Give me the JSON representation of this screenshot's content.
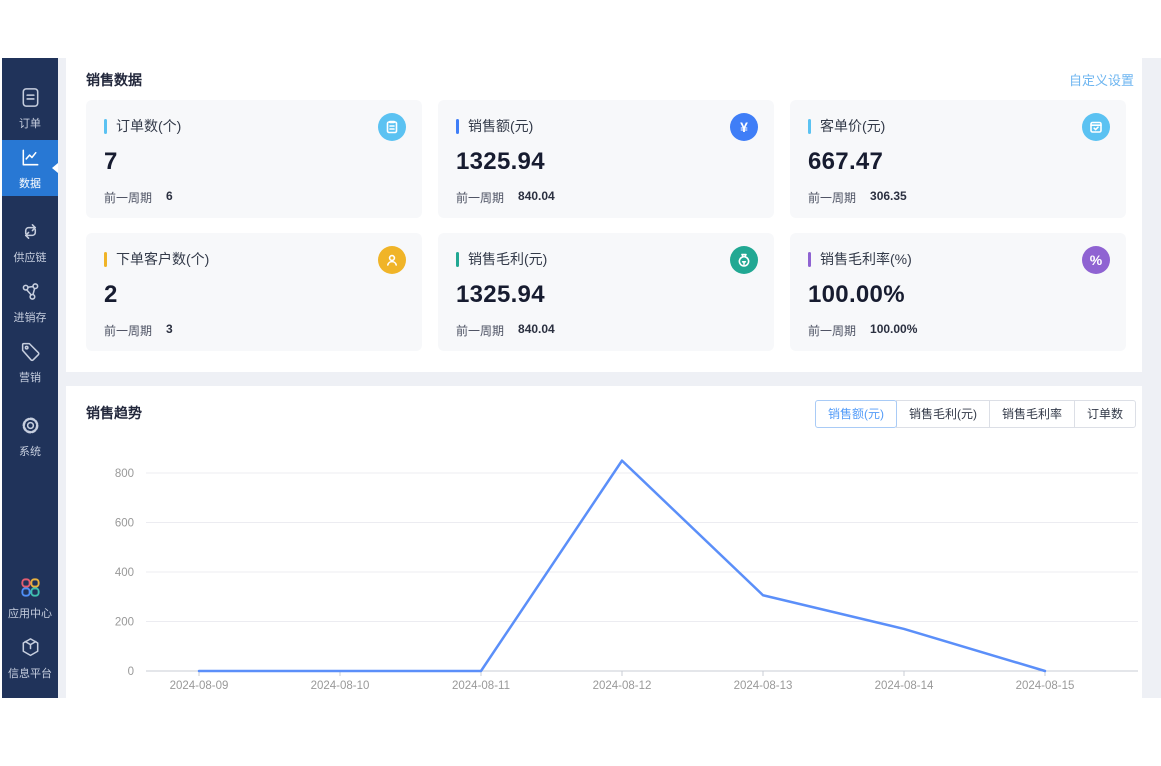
{
  "colors": {
    "sidebar_bg": "#20335a",
    "sidebar_active_bg": "#2878d4",
    "app_bg": "#eef0f5",
    "card_bg": "#f7f8fa",
    "line": "#5b8ff9",
    "link": "#6db5f0",
    "accents": [
      "#5bc2f2",
      "#3f7ef7",
      "#5bc2f2",
      "#f0b428",
      "#21a893",
      "#8f63d2"
    ]
  },
  "sidebar": {
    "items": [
      {
        "label": "订单",
        "icon": "document-icon",
        "active": false
      },
      {
        "label": "数据",
        "icon": "chart-line-icon",
        "active": true
      },
      {
        "label": "供应链",
        "icon": "supply-chain-icon",
        "active": false
      },
      {
        "label": "进销存",
        "icon": "share-nodes-icon",
        "active": false
      },
      {
        "label": "营销",
        "icon": "tag-icon",
        "active": false
      },
      {
        "label": "系统",
        "icon": "gear-icon",
        "active": false
      }
    ],
    "bottom_items": [
      {
        "label": "应用中心",
        "icon": "clover-icon"
      },
      {
        "label": "信息平台",
        "icon": "cube-icon"
      }
    ]
  },
  "sales_data": {
    "title": "销售数据",
    "settings_link": "自定义设置",
    "prev_period_label": "前一周期",
    "cards": [
      {
        "label": "订单数(个)",
        "value": "7",
        "prev": "6",
        "accent": "#5bc2f2",
        "icon": "clipboard-icon"
      },
      {
        "label": "销售额(元)",
        "value": "1325.94",
        "prev": "840.04",
        "accent": "#3f7ef7",
        "icon": "yen-icon",
        "glyph": "¥"
      },
      {
        "label": "客单价(元)",
        "value": "667.47",
        "prev": "306.35",
        "accent": "#5bc2f2",
        "icon": "calendar-check-icon"
      },
      {
        "label": "下单客户数(个)",
        "value": "2",
        "prev": "3",
        "accent": "#f0b428",
        "icon": "user-icon"
      },
      {
        "label": "销售毛利(元)",
        "value": "1325.94",
        "prev": "840.04",
        "accent": "#21a893",
        "icon": "money-bag-icon"
      },
      {
        "label": "销售毛利率(%)",
        "value": "100.00%",
        "prev": "100.00%",
        "accent": "#8f63d2",
        "icon": "percent-icon",
        "glyph": "%"
      }
    ]
  },
  "sales_trend": {
    "title": "销售趋势",
    "tabs": [
      {
        "label": "销售额(元)",
        "active": true
      },
      {
        "label": "销售毛利(元)",
        "active": false
      },
      {
        "label": "销售毛利率",
        "active": false
      },
      {
        "label": "订单数",
        "active": false
      }
    ]
  },
  "chart_data": {
    "type": "line",
    "title": "销售趋势",
    "x": [
      "2024-08-09",
      "2024-08-10",
      "2024-08-11",
      "2024-08-12",
      "2024-08-13",
      "2024-08-14",
      "2024-08-15"
    ],
    "series": [
      {
        "name": "销售额(元)",
        "color": "#5b8ff9",
        "values": [
          0,
          0,
          0,
          850,
          306,
          170,
          0
        ]
      }
    ],
    "yticks": [
      0,
      200,
      400,
      600,
      800
    ],
    "ylim": [
      0,
      900
    ],
    "grid": true,
    "legend": "none",
    "xlabel": "",
    "ylabel": ""
  }
}
